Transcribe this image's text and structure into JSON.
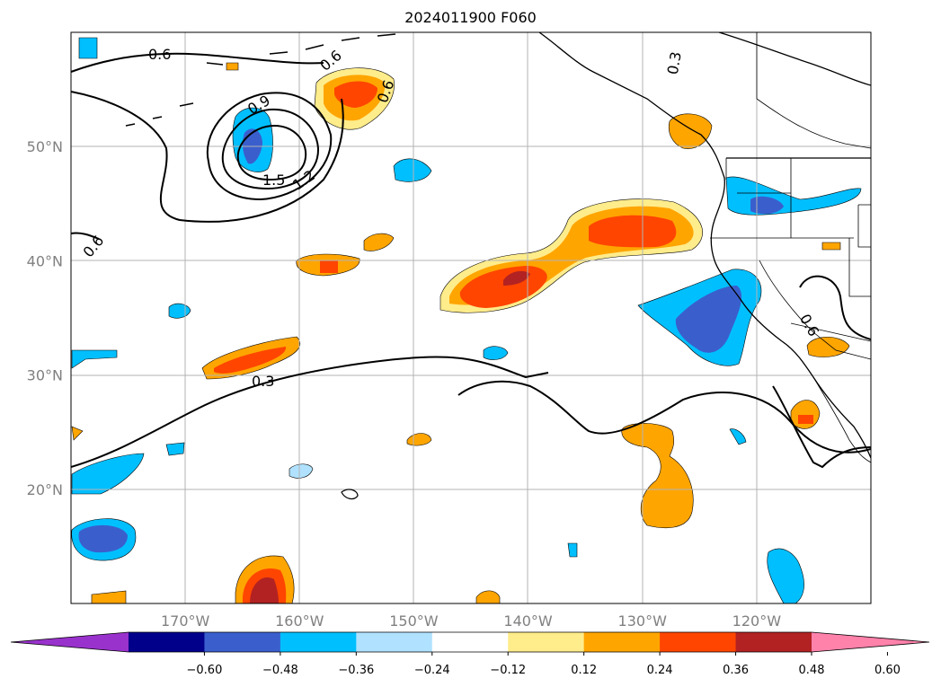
{
  "title": "2024011900 F060",
  "map": {
    "lon_range": [
      -180,
      -110
    ],
    "lat_range": [
      10,
      60
    ],
    "lon_ticks": [
      {
        "value": -170,
        "label": "170°W"
      },
      {
        "value": -160,
        "label": "160°W"
      },
      {
        "value": -150,
        "label": "150°W"
      },
      {
        "value": -140,
        "label": "140°W"
      },
      {
        "value": -130,
        "label": "130°W"
      },
      {
        "value": -120,
        "label": "120°W"
      }
    ],
    "lat_ticks": [
      {
        "value": 50,
        "label": "50°N"
      },
      {
        "value": 40,
        "label": "40°N"
      },
      {
        "value": 30,
        "label": "30°N"
      },
      {
        "value": 20,
        "label": "20°N"
      }
    ],
    "gridlines": true,
    "contour_labels": [
      "0.6",
      "0.3",
      "0.9",
      "1.5",
      "1.2",
      "0.6",
      "0.6",
      "0.6",
      "0.3",
      "0.6"
    ]
  },
  "colorbar": {
    "ticks": [
      "−0.60",
      "−0.48",
      "−0.36",
      "−0.24",
      "−0.12",
      "0.12",
      "0.24",
      "0.36",
      "0.48",
      "0.60"
    ],
    "colors": [
      "#9932cc",
      "#00008b",
      "#3a5fcd",
      "#00bfff",
      "#b0e2ff",
      "#ffffff",
      "#ffec8b",
      "#ffa500",
      "#ff4500",
      "#b22222",
      "#ff82ab"
    ]
  }
}
